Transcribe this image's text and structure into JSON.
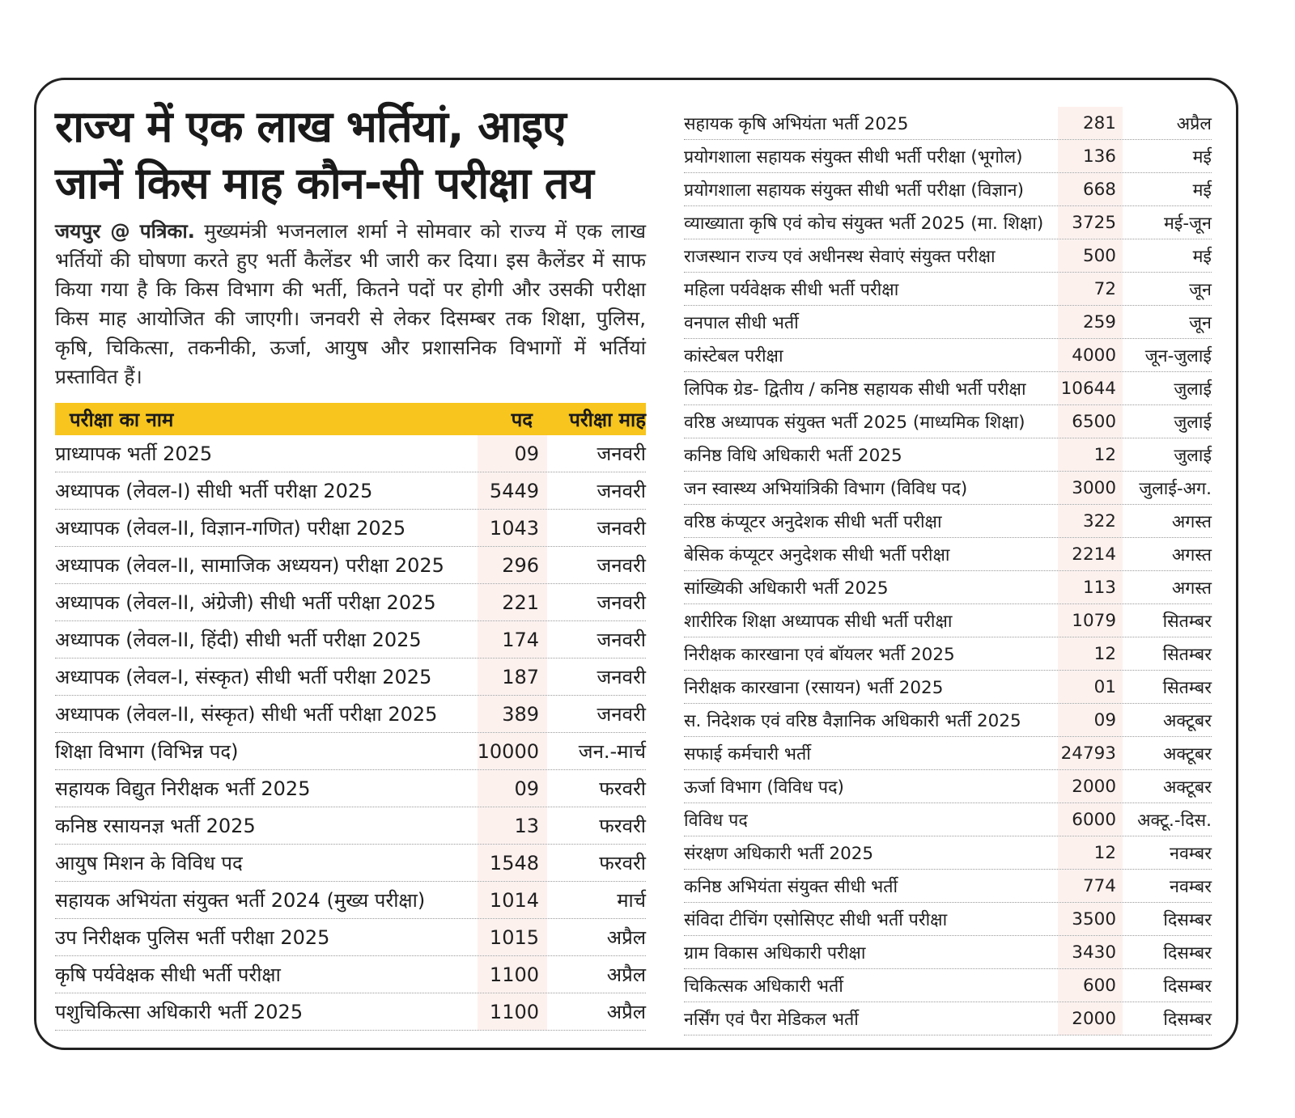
{
  "headline": {
    "line1": "राज्य में एक लाख भर्तियां, आइए",
    "line2": "जानें किस माह कौन-सी परीक्षा तय"
  },
  "lead": {
    "dateline": "जयपुर @ पत्रिका.",
    "text": " मुख्यमंत्री भजनलाल शर्मा ने सोमवार को राज्य में एक लाख भर्तियों की घोषणा करते हुए भर्ती कैलेंडर भी जारी कर दिया। इस कैलेंडर में साफ किया गया है कि किस विभाग की भर्ती, कितने पदों पर होगी और उसकी परीक्षा किस माह आयोजित की जाएगी। जनवरी से लेकर दिसम्बर तक शिक्षा, पुलिस, कृषि, चिकित्सा, तकनीकी, ऊर्जा, आयुष और प्रशासनिक विभागों में भर्तियां प्रस्तावित हैं।"
  },
  "table": {
    "header": {
      "name": "परीक्षा का नाम",
      "posts": "पद",
      "month": "परीक्षा माह"
    },
    "left_rows": [
      {
        "name": "प्राध्यापक भर्ती 2025",
        "posts": "09",
        "month": "जनवरी"
      },
      {
        "name": "अध्यापक (लेवल-I) सीधी भर्ती परीक्षा 2025",
        "posts": "5449",
        "month": "जनवरी"
      },
      {
        "name": "अध्यापक (लेवल-II, विज्ञान-गणित) परीक्षा 2025",
        "posts": "1043",
        "month": "जनवरी"
      },
      {
        "name": "अध्यापक (लेवल-II, सामाजिक अध्ययन) परीक्षा 2025",
        "posts": "296",
        "month": "जनवरी"
      },
      {
        "name": "अध्यापक (लेवल-II, अंग्रेजी) सीधी भर्ती परीक्षा 2025",
        "posts": "221",
        "month": "जनवरी"
      },
      {
        "name": "अध्यापक (लेवल-II, हिंदी) सीधी भर्ती परीक्षा 2025",
        "posts": "174",
        "month": "जनवरी"
      },
      {
        "name": "अध्यापक (लेवल-I, संस्कृत) सीधी भर्ती परीक्षा 2025",
        "posts": "187",
        "month": "जनवरी"
      },
      {
        "name": "अध्यापक (लेवल-II, संस्कृत) सीधी भर्ती परीक्षा 2025",
        "posts": "389",
        "month": "जनवरी"
      },
      {
        "name": "शिक्षा विभाग (विभिन्न पद)",
        "posts": "10000",
        "month": "जन.-मार्च"
      },
      {
        "name": "सहायक विद्युत निरीक्षक भर्ती 2025",
        "posts": "09",
        "month": "फरवरी"
      },
      {
        "name": "कनिष्ठ रसायनज्ञ भर्ती  2025",
        "posts": "13",
        "month": "फरवरी"
      },
      {
        "name": "आयुष मिशन के विविध पद",
        "posts": "1548",
        "month": "फरवरी"
      },
      {
        "name": "सहायक अभियंता संयुक्त भर्ती 2024 (मुख्य परीक्षा)",
        "posts": "1014",
        "month": "मार्च"
      },
      {
        "name": "उप निरीक्षक पुलिस भर्ती परीक्षा 2025",
        "posts": "1015",
        "month": "अप्रैल"
      },
      {
        "name": "कृषि पर्यवेक्षक सीधी भर्ती परीक्षा",
        "posts": "1100",
        "month": "अप्रैल"
      },
      {
        "name": "पशुचिकित्सा अधिकारी भर्ती 2025",
        "posts": "1100",
        "month": "अप्रैल"
      }
    ],
    "right_rows": [
      {
        "name": "सहायक कृषि अभियंता भर्ती 2025",
        "posts": "281",
        "month": "अप्रैल"
      },
      {
        "name": "प्रयोगशाला सहायक संयुक्त सीधी भर्ती परीक्षा (भूगोल)",
        "posts": "136",
        "month": "मई"
      },
      {
        "name": "प्रयोगशाला सहायक संयुक्त सीधी भर्ती परीक्षा (विज्ञान)",
        "posts": "668",
        "month": "मई"
      },
      {
        "name": "व्याख्याता कृषि एवं कोच संयुक्त भर्ती 2025 (मा. शिक्षा)",
        "posts": "3725",
        "month": "मई-जून"
      },
      {
        "name": "राजस्थान राज्य एवं अधीनस्थ सेवाएं संयुक्त परीक्षा",
        "posts": "500",
        "month": "मई"
      },
      {
        "name": "महिला पर्यवेक्षक सीधी भर्ती परीक्षा",
        "posts": "72",
        "month": "जून"
      },
      {
        "name": "वनपाल सीधी भर्ती",
        "posts": "259",
        "month": "जून"
      },
      {
        "name": "कांस्टेबल परीक्षा",
        "posts": "4000",
        "month": "जून-जुलाई"
      },
      {
        "name": "लिपिक ग्रेड- द्वितीय / कनिष्ठ सहायक सीधी भर्ती परीक्षा",
        "posts": "10644",
        "month": "जुलाई"
      },
      {
        "name": "वरिष्ठ अध्यापक संयुक्त भर्ती 2025 (माध्यमिक शिक्षा)",
        "posts": "6500",
        "month": "जुलाई"
      },
      {
        "name": "कनिष्ठ विधि अधिकारी भर्ती 2025",
        "posts": "12",
        "month": "जुलाई"
      },
      {
        "name": "जन स्वास्थ्य अभियांत्रिकी विभाग (विविध पद)",
        "posts": "3000",
        "month": "जुलाई-अग."
      },
      {
        "name": "वरिष्ठ कंप्यूटर अनुदेशक सीधी भर्ती परीक्षा",
        "posts": "322",
        "month": "अगस्त"
      },
      {
        "name": "बेसिक कंप्यूटर अनुदेशक सीधी भर्ती परीक्षा",
        "posts": "2214",
        "month": "अगस्त"
      },
      {
        "name": "सांख्यिकी अधिकारी भर्ती 2025",
        "posts": "113",
        "month": "अगस्त"
      },
      {
        "name": "शारीरिक शिक्षा अध्यापक सीधी भर्ती परीक्षा",
        "posts": "1079",
        "month": "सितम्बर"
      },
      {
        "name": "निरीक्षक कारखाना एवं बॉयलर भर्ती 2025",
        "posts": "12",
        "month": "सितम्बर"
      },
      {
        "name": "निरीक्षक कारखाना (रसायन) भर्ती 2025",
        "posts": "01",
        "month": "सितम्बर"
      },
      {
        "name": "स. निदेशक एवं वरिष्ठ वैज्ञानिक अधिकारी भर्ती 2025",
        "posts": "09",
        "month": "अक्टूबर"
      },
      {
        "name": "सफाई कर्मचारी भर्ती",
        "posts": "24793",
        "month": "अक्टूबर"
      },
      {
        "name": "ऊर्जा विभाग (विविध पद)",
        "posts": "2000",
        "month": "अक्टूबर"
      },
      {
        "name": "विविध पद",
        "posts": "6000",
        "month": "अक्टू.-दिस."
      },
      {
        "name": "संरक्षण अधिकारी भर्ती 2025",
        "posts": "12",
        "month": "नवम्बर"
      },
      {
        "name": "कनिष्ठ अभियंता संयुक्त सीधी भर्ती",
        "posts": "774",
        "month": "नवम्बर"
      },
      {
        "name": "संविदा टीचिंग एसोसिएट  सीधी भर्ती परीक्षा",
        "posts": "3500",
        "month": "दिसम्बर"
      },
      {
        "name": "ग्राम विकास अधिकारी परीक्षा",
        "posts": "3430",
        "month": "दिसम्बर"
      },
      {
        "name": "चिकित्सक अधिकारी भर्ती",
        "posts": "600",
        "month": "दिसम्बर"
      },
      {
        "name": "नर्सिंग एवं पैरा मेडिकल भर्ती",
        "posts": "2000",
        "month": "दिसम्बर"
      }
    ]
  },
  "colors": {
    "header_bg": "#f7c51d",
    "posts_col_bg": "#fdf1ee",
    "border": "#222222"
  }
}
